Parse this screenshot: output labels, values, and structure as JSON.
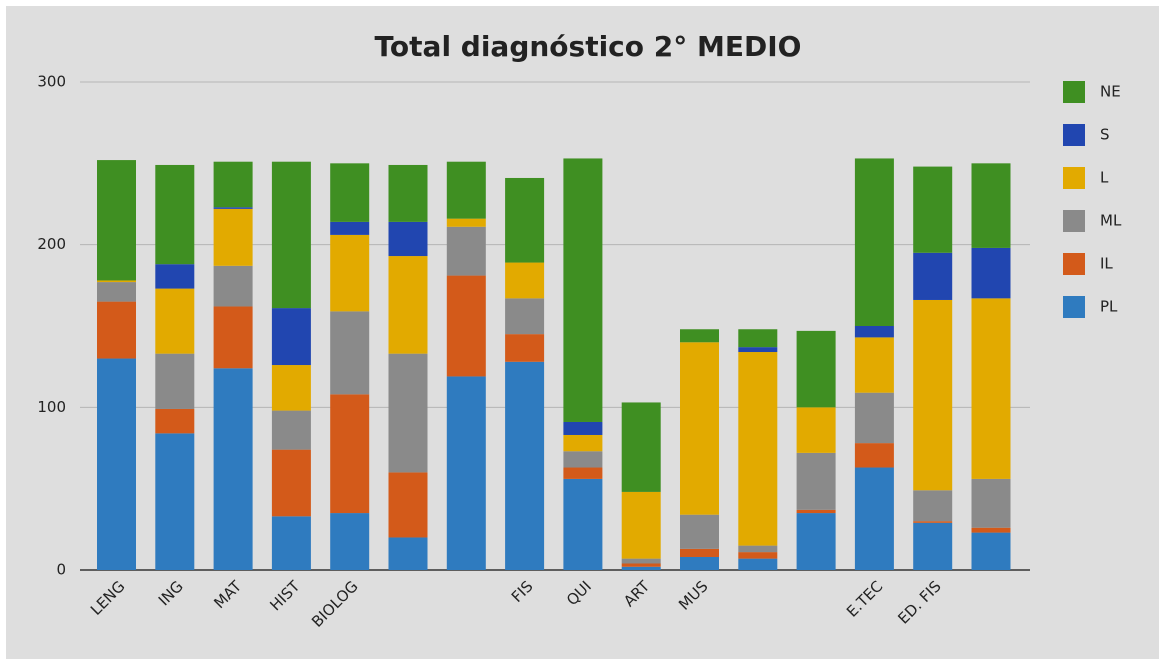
{
  "chart_data": {
    "type": "bar",
    "stacked": true,
    "title": "Total diagnóstico 2° MEDIO",
    "categories": [
      "LENG",
      "ING",
      "MAT",
      "HIST",
      "BIOLOG",
      null,
      null,
      "FIS",
      "QUI",
      "ART",
      "MUS",
      null,
      null,
      "E.TEC",
      "ED. FIS",
      null
    ],
    "series": [
      {
        "name": "PL",
        "color": "#2f7bbf",
        "values": [
          130,
          84,
          124,
          33,
          35,
          20,
          119,
          128,
          56,
          2,
          8,
          7,
          35,
          63,
          29,
          23
        ]
      },
      {
        "name": "IL",
        "color": "#d35a1a",
        "values": [
          35,
          15,
          38,
          41,
          73,
          40,
          62,
          17,
          7,
          2,
          5,
          4,
          2,
          15,
          1,
          3
        ]
      },
      {
        "name": "ML",
        "color": "#8a8a8a",
        "values": [
          12,
          34,
          25,
          24,
          51,
          73,
          30,
          22,
          10,
          3,
          21,
          4,
          35,
          31,
          19,
          30
        ]
      },
      {
        "name": "L",
        "color": "#e2aa00",
        "values": [
          1,
          40,
          35,
          28,
          47,
          60,
          5,
          22,
          10,
          41,
          106,
          119,
          28,
          34,
          117,
          111
        ]
      },
      {
        "name": "S",
        "color": "#2146b0",
        "values": [
          0,
          15,
          1,
          35,
          8,
          21,
          0,
          0,
          8,
          0,
          0,
          3,
          0,
          7,
          29,
          31
        ]
      },
      {
        "name": "NE",
        "color": "#3f8f22",
        "values": [
          74,
          61,
          28,
          90,
          36,
          35,
          35,
          52,
          162,
          55,
          8,
          11,
          47,
          103,
          53,
          52
        ]
      }
    ],
    "ylim": [
      0,
      300
    ],
    "yticks": [
      0,
      100,
      200,
      300
    ],
    "grid": true,
    "legend": "right"
  }
}
